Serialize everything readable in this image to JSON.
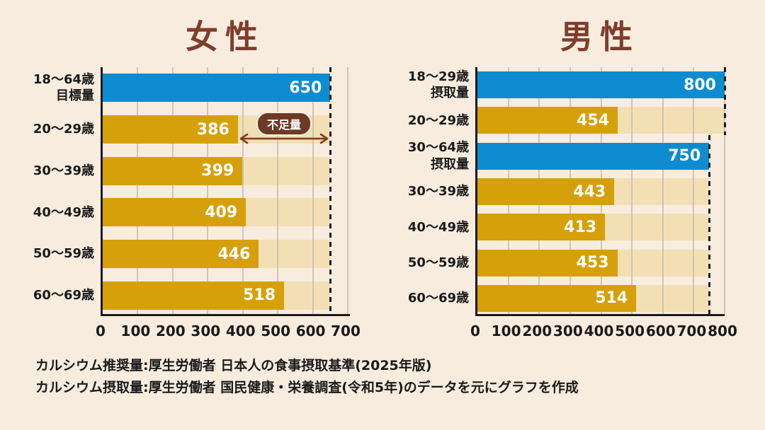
{
  "colors": {
    "background": "#F8ECDF",
    "title": "#7E3D2D",
    "bar_target_blue": "#0E8CD2",
    "bar_intake_gold": "#D6A00A",
    "bar_track_tan": "#F2E0B4",
    "value_label": "#FFFFFF",
    "axis": "#1A1A1A",
    "label_text": "#1A1A1A",
    "grid": "#C4BBAF",
    "badge_bg": "#6E3A28",
    "badge_text": "#FFFFFF",
    "arrow": "#7E3B28",
    "dashed_line": "#1A1A1A"
  },
  "chart_data": [
    {
      "type": "bar",
      "orientation": "horizontal",
      "title": "女性",
      "xlim": [
        0,
        700
      ],
      "xticks": [
        0,
        100,
        200,
        300,
        400,
        500,
        600,
        700
      ],
      "grid": true,
      "value_labels": "inside-end",
      "rows": [
        {
          "label": "18〜64歳\n目標量",
          "value": 650,
          "role": "target",
          "track_to": null
        },
        {
          "label": "20〜29歳",
          "value": 386,
          "role": "intake",
          "track_to": 650
        },
        {
          "label": "30〜39歳",
          "value": 399,
          "role": "intake",
          "track_to": 650
        },
        {
          "label": "40〜49歳",
          "value": 409,
          "role": "intake",
          "track_to": 650
        },
        {
          "label": "50〜59歳",
          "value": 446,
          "role": "intake",
          "track_to": 650
        },
        {
          "label": "60〜69歳",
          "value": 518,
          "role": "intake",
          "track_to": 650
        }
      ],
      "reference_lines": [
        {
          "value": 650,
          "rows": [
            0,
            5
          ]
        }
      ],
      "annotation": {
        "label": "不足量",
        "row": 1,
        "from": 386,
        "to": 650
      }
    },
    {
      "type": "bar",
      "orientation": "horizontal",
      "title": "男性",
      "xlim": [
        0,
        800
      ],
      "xticks": [
        0,
        100,
        200,
        300,
        400,
        500,
        600,
        700,
        800
      ],
      "grid": true,
      "value_labels": "inside-end",
      "rows": [
        {
          "label": "18〜29歳\n摂取量",
          "value": 800,
          "role": "target",
          "track_to": null
        },
        {
          "label": "20〜29歳",
          "value": 454,
          "role": "intake",
          "track_to": 800
        },
        {
          "label": "30〜64歳\n摂取量",
          "value": 750,
          "role": "target",
          "track_to": null
        },
        {
          "label": "30〜39歳",
          "value": 443,
          "role": "intake",
          "track_to": 750
        },
        {
          "label": "40〜49歳",
          "value": 413,
          "role": "intake",
          "track_to": 750
        },
        {
          "label": "50〜59歳",
          "value": 453,
          "role": "intake",
          "track_to": 750
        },
        {
          "label": "60〜69歳",
          "value": 514,
          "role": "intake",
          "track_to": 750
        }
      ],
      "reference_lines": [
        {
          "value": 800,
          "rows": [
            0,
            1
          ]
        },
        {
          "value": 750,
          "rows": [
            2,
            6
          ]
        }
      ]
    }
  ],
  "footnotes": [
    "カルシウム推奨量:厚生労働者 日本人の食事摂取基準(2025年版)",
    "カルシウム摂取量:厚生労働者 国民健康・栄養調査(令和5年)のデータを元にグラフを作成"
  ]
}
